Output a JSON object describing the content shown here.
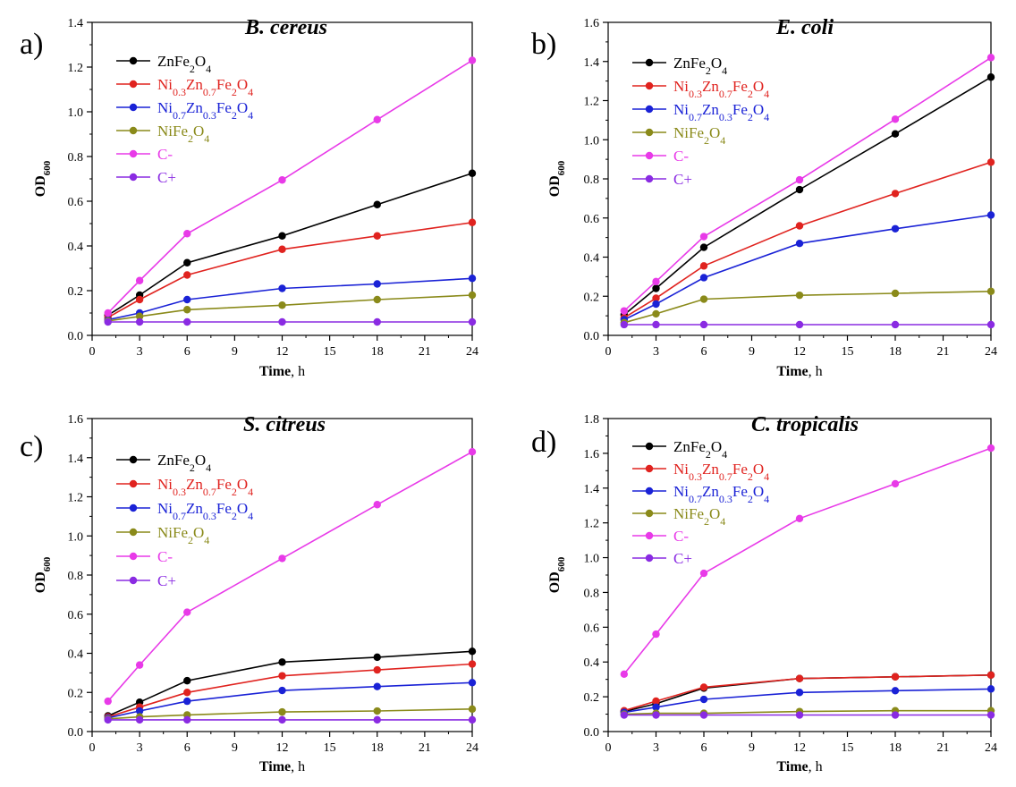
{
  "figure": {
    "series_colors": {
      "ZnFe2O4": "#000000",
      "Ni0.3Zn0.7Fe2O4": "#e0231f",
      "Ni0.7Zn0.3Fe2O4": "#1a22d6",
      "NiFe2O4": "#8a8a1a",
      "C-": "#e83ae8",
      "C+": "#8a2be2"
    }
  },
  "chart_data": [
    {
      "type": "line",
      "panel_label": "a)",
      "title": "B. cereus",
      "xlabel_bold": "Time",
      "xlabel_rest": ", h",
      "ylabel_main": "OD",
      "ylabel_sub": "600",
      "x": [
        1,
        3,
        6,
        12,
        18,
        24
      ],
      "xlim": [
        0,
        24
      ],
      "xticks": [
        0,
        3,
        6,
        9,
        12,
        15,
        18,
        21,
        24
      ],
      "xtick_labels": [
        "0",
        "3",
        "6",
        "9",
        "12",
        "15",
        "18",
        "21",
        "24"
      ],
      "ylim": [
        0,
        1.4
      ],
      "yticks": [
        0,
        0.2,
        0.4,
        0.6,
        0.8,
        1.0,
        1.2,
        1.4
      ],
      "ytick_labels": [
        "0.0",
        "0.2",
        "0.4",
        "0.6",
        "0.8",
        "1.0",
        "1.2",
        "1.4"
      ],
      "legend_position": "top-left",
      "series": [
        {
          "key": "ZnFe2O4",
          "name": "ZnFe2O4",
          "values": [
            0.09,
            0.18,
            0.325,
            0.445,
            0.585,
            0.725
          ]
        },
        {
          "key": "Ni0.3Zn0.7Fe2O4",
          "name": "Ni0.3Zn0.7Fe2O4",
          "values": [
            0.08,
            0.16,
            0.27,
            0.385,
            0.445,
            0.505
          ]
        },
        {
          "key": "Ni0.7Zn0.3Fe2O4",
          "name": "Ni0.7Zn0.3Fe2O4",
          "values": [
            0.07,
            0.1,
            0.16,
            0.21,
            0.23,
            0.255
          ]
        },
        {
          "key": "NiFe2O4",
          "name": "NiFe2O4",
          "values": [
            0.065,
            0.085,
            0.115,
            0.135,
            0.16,
            0.18
          ]
        },
        {
          "key": "C-",
          "name": "C-",
          "values": [
            0.1,
            0.245,
            0.455,
            0.695,
            0.965,
            1.23
          ]
        },
        {
          "key": "C+",
          "name": "C+",
          "values": [
            0.06,
            0.06,
            0.06,
            0.06,
            0.06,
            0.06
          ]
        }
      ]
    },
    {
      "type": "line",
      "panel_label": "b)",
      "title": "E. coli",
      "xlabel_bold": "Time",
      "xlabel_rest": ", h",
      "ylabel_main": "OD",
      "ylabel_sub": "600",
      "x": [
        1,
        3,
        6,
        12,
        18,
        24
      ],
      "xlim": [
        0,
        24
      ],
      "xticks": [
        0,
        3,
        6,
        9,
        12,
        15,
        18,
        21,
        24
      ],
      "xtick_labels": [
        "0",
        "3",
        "6",
        "9",
        "12",
        "15",
        "18",
        "21",
        "24"
      ],
      "ylim": [
        0,
        1.6
      ],
      "yticks": [
        0,
        0.2,
        0.4,
        0.6,
        0.8,
        1.0,
        1.2,
        1.4,
        1.6
      ],
      "ytick_labels": [
        "0.0",
        "0.2",
        "0.4",
        "0.6",
        "0.8",
        "1.0",
        "1.2",
        "1.4",
        "1.6"
      ],
      "legend_position": "top-left",
      "series": [
        {
          "key": "ZnFe2O4",
          "name": "ZnFe2O4",
          "values": [
            0.105,
            0.24,
            0.45,
            0.745,
            1.03,
            1.32
          ]
        },
        {
          "key": "Ni0.3Zn0.7Fe2O4",
          "name": "Ni0.3Zn0.7Fe2O4",
          "values": [
            0.09,
            0.19,
            0.355,
            0.56,
            0.725,
            0.885
          ]
        },
        {
          "key": "Ni0.7Zn0.3Fe2O4",
          "name": "Ni0.7Zn0.3Fe2O4",
          "values": [
            0.08,
            0.16,
            0.295,
            0.47,
            0.545,
            0.615
          ]
        },
        {
          "key": "NiFe2O4",
          "name": "NiFe2O4",
          "values": [
            0.065,
            0.11,
            0.185,
            0.205,
            0.215,
            0.225
          ]
        },
        {
          "key": "C-",
          "name": "C-",
          "values": [
            0.125,
            0.275,
            0.505,
            0.795,
            1.105,
            1.42
          ]
        },
        {
          "key": "C+",
          "name": "C+",
          "values": [
            0.055,
            0.055,
            0.055,
            0.055,
            0.055,
            0.055
          ]
        }
      ]
    },
    {
      "type": "line",
      "panel_label": "c)",
      "title": "S. citreus",
      "xlabel_bold": "Time",
      "xlabel_rest": ", h",
      "ylabel_main": "OD",
      "ylabel_sub": "600",
      "x": [
        1,
        3,
        6,
        12,
        18,
        24
      ],
      "xlim": [
        0,
        24
      ],
      "xticks": [
        0,
        3,
        6,
        9,
        12,
        15,
        18,
        21,
        24
      ],
      "xtick_labels": [
        "0",
        "3",
        "6",
        "9",
        "12",
        "15",
        "18",
        "21",
        "24"
      ],
      "ylim": [
        0,
        1.6
      ],
      "yticks": [
        0,
        0.2,
        0.4,
        0.6,
        0.8,
        1.0,
        1.2,
        1.4,
        1.6
      ],
      "ytick_labels": [
        "0.0",
        "0.2",
        "0.4",
        "0.6",
        "0.8",
        "1.0",
        "1.2",
        "1.4",
        "1.6"
      ],
      "legend_position": "top-left",
      "series": [
        {
          "key": "ZnFe2O4",
          "name": "ZnFe2O4",
          "values": [
            0.08,
            0.15,
            0.26,
            0.355,
            0.38,
            0.41
          ]
        },
        {
          "key": "Ni0.3Zn0.7Fe2O4",
          "name": "Ni0.3Zn0.7Fe2O4",
          "values": [
            0.075,
            0.125,
            0.2,
            0.285,
            0.315,
            0.345
          ]
        },
        {
          "key": "Ni0.7Zn0.3Fe2O4",
          "name": "Ni0.7Zn0.3Fe2O4",
          "values": [
            0.07,
            0.105,
            0.155,
            0.21,
            0.23,
            0.25
          ]
        },
        {
          "key": "NiFe2O4",
          "name": "NiFe2O4",
          "values": [
            0.065,
            0.075,
            0.085,
            0.1,
            0.105,
            0.115
          ]
        },
        {
          "key": "C-",
          "name": "C-",
          "values": [
            0.155,
            0.34,
            0.61,
            0.885,
            1.16,
            1.43
          ]
        },
        {
          "key": "C+",
          "name": "C+",
          "values": [
            0.06,
            0.06,
            0.06,
            0.06,
            0.06,
            0.06
          ]
        }
      ]
    },
    {
      "type": "line",
      "panel_label": "d)",
      "title": "C. tropicalis",
      "xlabel_bold": "Time",
      "xlabel_rest": ", h",
      "ylabel_main": "OD",
      "ylabel_sub": "600",
      "x": [
        1,
        3,
        6,
        12,
        18,
        24
      ],
      "xlim": [
        0,
        24
      ],
      "xticks": [
        0,
        3,
        6,
        9,
        12,
        15,
        18,
        21,
        24
      ],
      "xtick_labels": [
        "0",
        "3",
        "6",
        "9",
        "12",
        "15",
        "18",
        "21",
        "24"
      ],
      "ylim": [
        0,
        1.8
      ],
      "yticks": [
        0,
        0.2,
        0.4,
        0.6,
        0.8,
        1.0,
        1.2,
        1.4,
        1.6,
        1.8
      ],
      "ytick_labels": [
        "0.0",
        "0.2",
        "0.4",
        "0.6",
        "0.8",
        "1.0",
        "1.2",
        "1.4",
        "1.6",
        "1.8"
      ],
      "legend_position": "top-left",
      "series": [
        {
          "key": "ZnFe2O4",
          "name": "ZnFe2O4",
          "values": [
            0.115,
            0.16,
            0.25,
            0.305,
            0.315,
            0.325
          ]
        },
        {
          "key": "Ni0.3Zn0.7Fe2O4",
          "name": "Ni0.3Zn0.7Fe2O4",
          "values": [
            0.12,
            0.175,
            0.255,
            0.305,
            0.315,
            0.325
          ]
        },
        {
          "key": "Ni0.7Zn0.3Fe2O4",
          "name": "Ni0.7Zn0.3Fe2O4",
          "values": [
            0.11,
            0.14,
            0.185,
            0.225,
            0.235,
            0.245
          ]
        },
        {
          "key": "NiFe2O4",
          "name": "NiFe2O4",
          "values": [
            0.1,
            0.105,
            0.105,
            0.115,
            0.12,
            0.12
          ]
        },
        {
          "key": "C-",
          "name": "C-",
          "values": [
            0.33,
            0.56,
            0.91,
            1.225,
            1.425,
            1.63
          ]
        },
        {
          "key": "C+",
          "name": "C+",
          "values": [
            0.095,
            0.095,
            0.095,
            0.095,
            0.095,
            0.095
          ]
        }
      ]
    }
  ]
}
